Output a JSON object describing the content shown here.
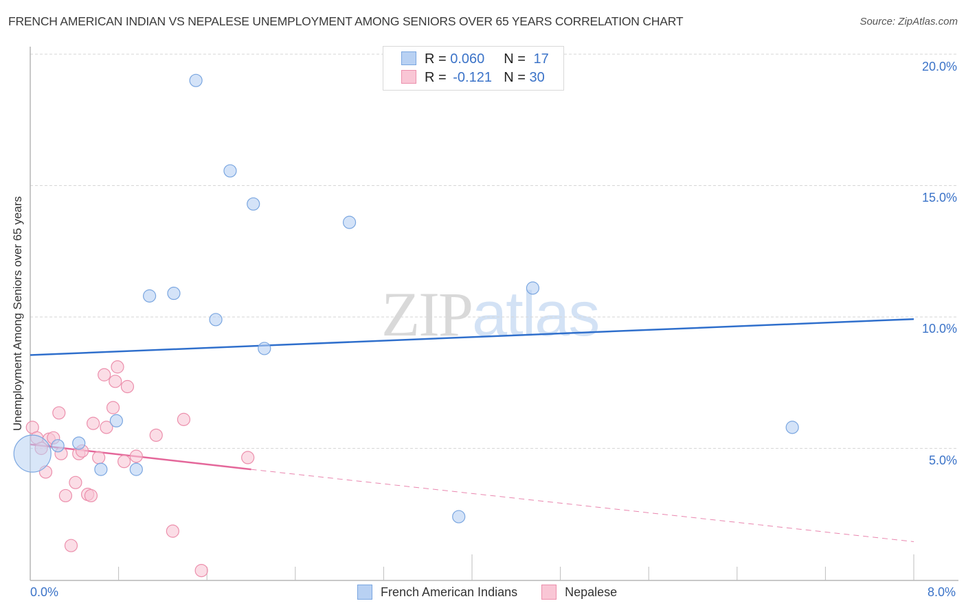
{
  "header": {
    "title": "FRENCH AMERICAN INDIAN VS NEPALESE UNEMPLOYMENT AMONG SENIORS OVER 65 YEARS CORRELATION CHART",
    "source": "Source: ZipAtlas.com"
  },
  "watermark": {
    "zip": "ZIP",
    "atlas": "atlas"
  },
  "legend": {
    "rows": [
      {
        "r_label": "R = ",
        "r_value": "0.060",
        "n_label": "N = ",
        "n_value": "17",
        "color": "#b8d1f3",
        "border": "#7aa6e0"
      },
      {
        "r_label": "R = ",
        "r_value": "-0.121",
        "n_label": "N = ",
        "n_value": "30",
        "color": "#f9c6d5",
        "border": "#ec8fac"
      }
    ]
  },
  "bottom_legend": {
    "items": [
      {
        "label": "French American Indians",
        "color": "#b8d1f3",
        "border": "#7aa6e0"
      },
      {
        "label": "Nepalese",
        "color": "#f9c6d5",
        "border": "#ec8fac"
      }
    ]
  },
  "axes": {
    "y_title": "Unemployment Among Seniors over 65 years",
    "y_ticks": [
      "20.0%",
      "15.0%",
      "10.0%",
      "5.0%"
    ],
    "x_min_label": "0.0%",
    "x_max_label": "8.0%"
  },
  "chart_data": {
    "type": "scatter",
    "title": "FRENCH AMERICAN INDIAN VS NEPALESE UNEMPLOYMENT AMONG SENIORS OVER 65 YEARS CORRELATION CHART",
    "xlabel": "",
    "ylabel": "Unemployment Among Seniors over 65 years",
    "xlim": [
      0,
      8
    ],
    "ylim": [
      0,
      21
    ],
    "x_ticks": [
      "0.0%",
      "8.0%"
    ],
    "y_ticks": [
      5,
      10,
      15,
      20
    ],
    "grid": "horizontal dashed",
    "legend_position": "top-center and bottom",
    "series": [
      {
        "name": "French American Indians",
        "color": "#b8d1f3",
        "stroke": "#7aa6e0",
        "R": 0.06,
        "N": 17,
        "trend": {
          "x": [
            0,
            8
          ],
          "y": [
            8.55,
            9.92
          ],
          "color": "#2f6fcc",
          "style": "solid"
        },
        "points": [
          {
            "x": 1.5,
            "y": 19.0
          },
          {
            "x": 1.81,
            "y": 15.56
          },
          {
            "x": 2.02,
            "y": 14.3
          },
          {
            "x": 2.89,
            "y": 13.6
          },
          {
            "x": 1.08,
            "y": 10.8
          },
          {
            "x": 1.3,
            "y": 10.9
          },
          {
            "x": 1.68,
            "y": 9.9
          },
          {
            "x": 2.12,
            "y": 8.8
          },
          {
            "x": 4.55,
            "y": 11.1
          },
          {
            "x": 0.78,
            "y": 6.05
          },
          {
            "x": 0.44,
            "y": 5.2
          },
          {
            "x": 0.25,
            "y": 5.1
          },
          {
            "x": 0.64,
            "y": 4.2
          },
          {
            "x": 0.96,
            "y": 4.2
          },
          {
            "x": 6.9,
            "y": 5.8
          },
          {
            "x": 3.88,
            "y": 2.4
          },
          {
            "x": 0.02,
            "y": 4.8,
            "large": true
          }
        ]
      },
      {
        "name": "Nepalese",
        "color": "#f9c6d5",
        "stroke": "#ec8fac",
        "R": -0.121,
        "N": 30,
        "trend": {
          "x": [
            0,
            2.0,
            8
          ],
          "y": [
            5.15,
            4.2,
            1.45
          ],
          "color": "#e4679a",
          "style": "solid to 2.0, dashed after"
        },
        "points": [
          {
            "x": 0.79,
            "y": 8.1
          },
          {
            "x": 0.67,
            "y": 7.8
          },
          {
            "x": 0.77,
            "y": 7.55
          },
          {
            "x": 0.88,
            "y": 7.35
          },
          {
            "x": 0.26,
            "y": 6.35
          },
          {
            "x": 0.75,
            "y": 6.55
          },
          {
            "x": 0.57,
            "y": 5.95
          },
          {
            "x": 0.69,
            "y": 5.8
          },
          {
            "x": 1.39,
            "y": 6.1
          },
          {
            "x": 1.14,
            "y": 5.5
          },
          {
            "x": 0.02,
            "y": 5.8
          },
          {
            "x": 0.06,
            "y": 5.4
          },
          {
            "x": 0.17,
            "y": 5.35
          },
          {
            "x": 0.21,
            "y": 5.4
          },
          {
            "x": 0.1,
            "y": 5.0
          },
          {
            "x": 0.28,
            "y": 4.8
          },
          {
            "x": 0.44,
            "y": 4.8
          },
          {
            "x": 0.47,
            "y": 4.9
          },
          {
            "x": 0.62,
            "y": 4.65
          },
          {
            "x": 0.85,
            "y": 4.5
          },
          {
            "x": 0.96,
            "y": 4.7
          },
          {
            "x": 1.97,
            "y": 4.65
          },
          {
            "x": 0.14,
            "y": 4.1
          },
          {
            "x": 0.41,
            "y": 3.7
          },
          {
            "x": 0.32,
            "y": 3.2
          },
          {
            "x": 0.52,
            "y": 3.25
          },
          {
            "x": 0.55,
            "y": 3.2
          },
          {
            "x": 1.29,
            "y": 1.85
          },
          {
            "x": 0.37,
            "y": 1.3
          },
          {
            "x": 1.55,
            "y": 0.35
          }
        ]
      }
    ]
  }
}
